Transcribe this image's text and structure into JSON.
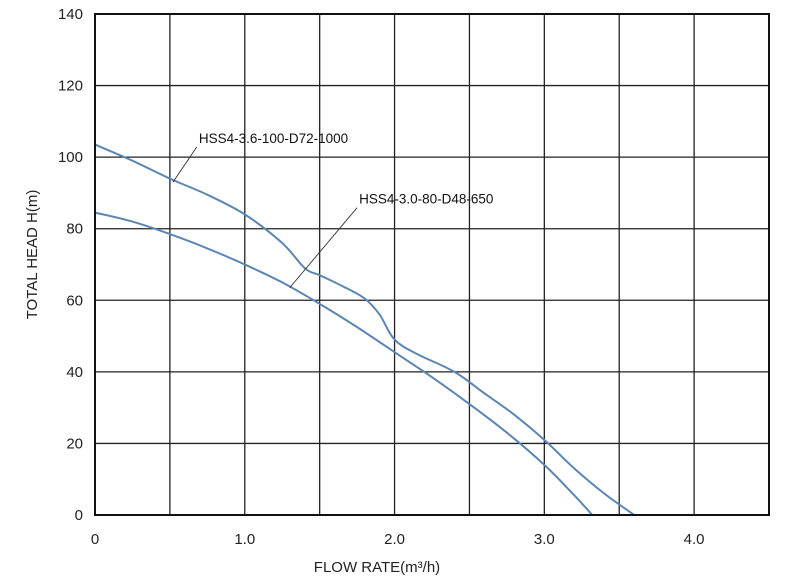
{
  "chart_data": {
    "type": "line",
    "title": "",
    "xlabel": "FLOW RATE(m³/h)",
    "ylabel": "TOTAL HEAD H(m)",
    "xlim": [
      0,
      4.5
    ],
    "ylim": [
      0,
      140
    ],
    "x_ticks": [
      0,
      1.0,
      2.0,
      3.0,
      4.0
    ],
    "x_tick_labels": [
      "0",
      "1.0",
      "2.0",
      "3.0",
      "4.0"
    ],
    "y_ticks": [
      0,
      20,
      40,
      60,
      80,
      100,
      120,
      140
    ],
    "y_tick_labels": [
      "0",
      "20",
      "40",
      "60",
      "80",
      "100",
      "120",
      "140"
    ],
    "grid": true,
    "line_color": "#5b86b4",
    "series": [
      {
        "name": "HSS4-3.6-100-D72-1000",
        "x": [
          0,
          0.25,
          0.5,
          0.75,
          1.0,
          1.25,
          1.4,
          1.5,
          1.65,
          1.8,
          1.9,
          2.0,
          2.15,
          2.4,
          2.6,
          2.8,
          3.0,
          3.2,
          3.4,
          3.6
        ],
        "y": [
          103.5,
          99,
          94,
          89.5,
          84,
          76,
          69,
          67,
          64,
          60.5,
          56,
          49,
          45,
          40,
          34,
          28,
          21,
          13,
          6,
          0
        ]
      },
      {
        "name": "HSS4-3.0-80-D48-650",
        "x": [
          0,
          0.25,
          0.5,
          0.75,
          1.0,
          1.25,
          1.5,
          1.75,
          2.0,
          2.25,
          2.5,
          2.75,
          3.0,
          3.2,
          3.32
        ],
        "y": [
          84.5,
          82,
          78.5,
          74.5,
          70,
          65,
          59,
          52.5,
          45.5,
          38.5,
          31,
          23,
          14,
          5.5,
          0
        ]
      }
    ],
    "annotations": [
      {
        "text": "HSS4-3.6-100-D72-1000",
        "series_index": 0,
        "label_x": 0.68,
        "label_y": 104,
        "point_x": 0.52,
        "point_y": 93
      },
      {
        "text": "HSS4-3.0-80-D48-650",
        "series_index": 1,
        "label_x": 1.75,
        "label_y": 87,
        "point_x": 1.3,
        "point_y": 63.5
      }
    ]
  }
}
